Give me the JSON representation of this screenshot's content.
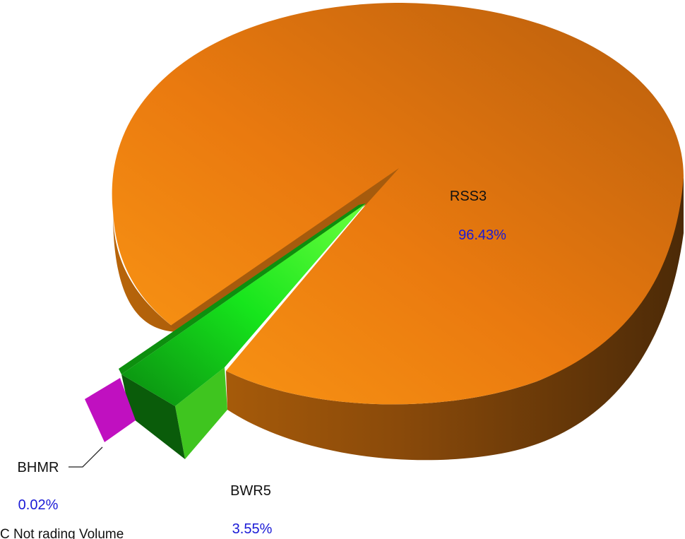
{
  "chart_data": {
    "type": "pie",
    "title": "",
    "caption": "C Not rading Volume",
    "label_percent_color": "#1a1ad6",
    "series": [
      {
        "name": "RSS3",
        "value": 96.43,
        "label": "96.43%",
        "color": "#f08414"
      },
      {
        "name": "BWR5",
        "value": 3.55,
        "label": "3.55%",
        "color": "#22d91c"
      },
      {
        "name": "BHMR",
        "value": 0.02,
        "label": "0.02%",
        "color": "#c010c0"
      }
    ]
  }
}
